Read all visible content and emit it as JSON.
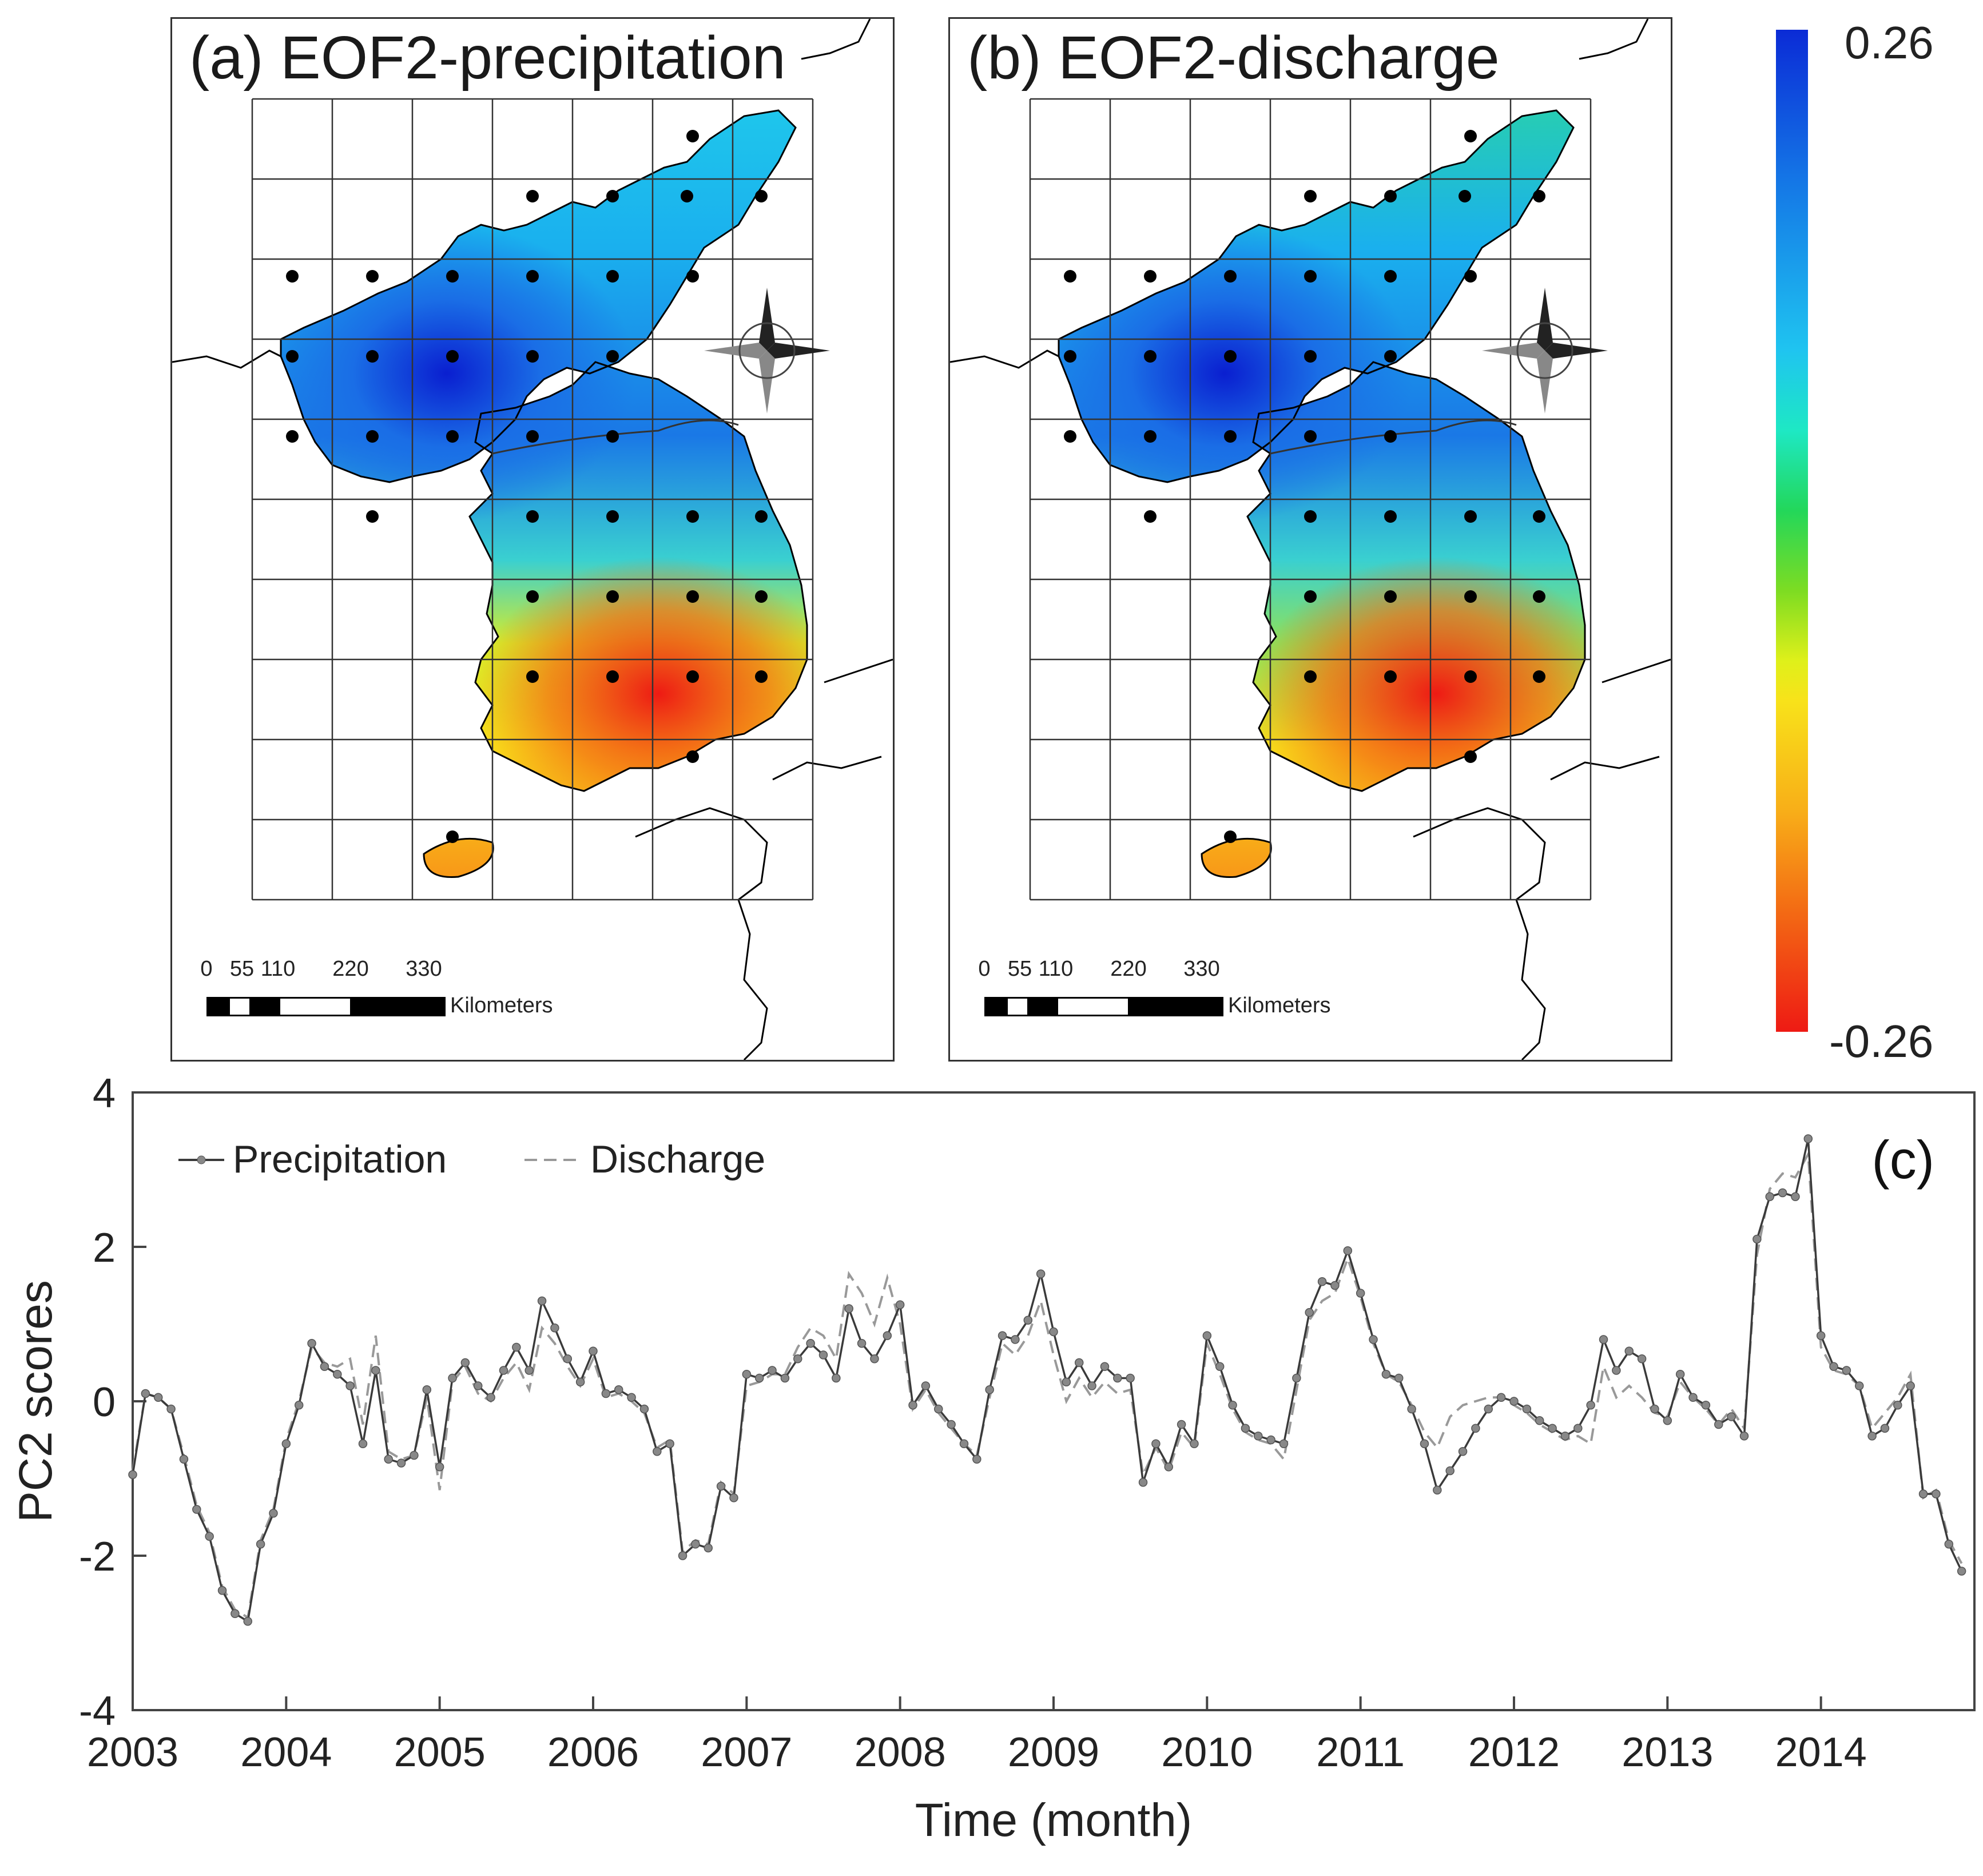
{
  "maps": [
    {
      "title": "(a) EOF2-precipitation"
    },
    {
      "title": "(b) EOF2-discharge"
    }
  ],
  "scale_bar": {
    "ticks": [
      "0",
      "55",
      "110",
      "220",
      "330"
    ],
    "units": "Kilometers"
  },
  "colorbar": {
    "max_label": "0.26",
    "min_label": "-0.26"
  },
  "chart_data": {
    "type": "line",
    "panel_label": "(c)",
    "xlabel": "Time (month)",
    "ylabel": "PC2 scores",
    "ylim": [
      -4,
      4
    ],
    "yticks": [
      "-4",
      "-2",
      "0",
      "2",
      "4"
    ],
    "xlim": [
      2003,
      2015
    ],
    "xticks": [
      "2003",
      "2004",
      "2005",
      "2006",
      "2007",
      "2008",
      "2009",
      "2010",
      "2011",
      "2012",
      "2013",
      "2014"
    ],
    "legend": {
      "position": "top-left"
    },
    "series": [
      {
        "name": "Precipitation",
        "style": "solid-markers",
        "values": [
          -0.95,
          0.1,
          0.05,
          -0.1,
          -0.75,
          -1.4,
          -1.75,
          -2.45,
          -2.75,
          -2.85,
          -1.85,
          -1.45,
          -0.55,
          -0.05,
          0.75,
          0.45,
          0.35,
          0.2,
          -0.55,
          0.4,
          -0.75,
          -0.8,
          -0.7,
          0.15,
          -0.85,
          0.3,
          0.5,
          0.2,
          0.05,
          0.4,
          0.7,
          0.4,
          1.3,
          0.95,
          0.55,
          0.25,
          0.65,
          0.1,
          0.15,
          0.05,
          -0.1,
          -0.65,
          -0.55,
          -2.0,
          -1.85,
          -1.9,
          -1.1,
          -1.25,
          0.35,
          0.3,
          0.4,
          0.3,
          0.55,
          0.75,
          0.6,
          0.3,
          1.2,
          0.75,
          0.55,
          0.85,
          1.25,
          -0.05,
          0.2,
          -0.1,
          -0.3,
          -0.55,
          -0.75,
          0.15,
          0.85,
          0.8,
          1.05,
          1.65,
          0.9,
          0.25,
          0.5,
          0.2,
          0.45,
          0.3,
          0.3,
          -1.05,
          -0.55,
          -0.85,
          -0.3,
          -0.55,
          0.85,
          0.45,
          -0.05,
          -0.35,
          -0.45,
          -0.5,
          -0.55,
          0.3,
          1.15,
          1.55,
          1.5,
          1.95,
          1.4,
          0.8,
          0.35,
          0.3,
          -0.1,
          -0.55,
          -1.15,
          -0.9,
          -0.65,
          -0.35,
          -0.1,
          0.05,
          0.0,
          -0.1,
          -0.25,
          -0.35,
          -0.45,
          -0.35,
          -0.05,
          0.8,
          0.4,
          0.65,
          0.55,
          -0.1,
          -0.25,
          0.35,
          0.05,
          -0.05,
          -0.3,
          -0.2,
          -0.45,
          2.1,
          2.65,
          2.7,
          2.65,
          3.4,
          0.85,
          0.45,
          0.4,
          0.2,
          -0.45,
          -0.35,
          -0.05,
          0.2,
          -1.2,
          -1.2,
          -1.85,
          -2.2
        ]
      },
      {
        "name": "Discharge",
        "style": "dashed",
        "values": [
          -0.9,
          0.1,
          0.05,
          -0.1,
          -0.7,
          -1.35,
          -1.7,
          -2.4,
          -2.7,
          -2.8,
          -1.8,
          -1.4,
          -0.5,
          0.0,
          0.7,
          0.5,
          0.45,
          0.55,
          -0.3,
          0.85,
          -0.65,
          -0.75,
          -0.7,
          0.05,
          -1.15,
          0.25,
          0.45,
          0.1,
          0.0,
          0.3,
          0.5,
          0.15,
          0.95,
          0.75,
          0.45,
          0.2,
          0.55,
          0.05,
          0.1,
          0.0,
          -0.15,
          -0.6,
          -0.5,
          -1.95,
          -1.8,
          -1.85,
          -1.05,
          -1.2,
          0.2,
          0.25,
          0.35,
          0.35,
          0.7,
          0.95,
          0.85,
          0.55,
          1.65,
          1.4,
          1.0,
          1.6,
          1.0,
          -0.1,
          0.15,
          -0.15,
          -0.35,
          -0.55,
          -0.7,
          0.05,
          0.75,
          0.6,
          0.85,
          1.3,
          0.6,
          0.0,
          0.3,
          0.05,
          0.25,
          0.1,
          0.15,
          -0.95,
          -0.6,
          -0.9,
          -0.4,
          -0.6,
          0.75,
          0.35,
          -0.1,
          -0.4,
          -0.5,
          -0.55,
          -0.75,
          0.15,
          1.05,
          1.3,
          1.4,
          1.85,
          1.35,
          0.75,
          0.35,
          0.25,
          -0.05,
          -0.4,
          -0.6,
          -0.2,
          -0.05,
          0.0,
          0.05,
          0.05,
          -0.05,
          -0.15,
          -0.3,
          -0.4,
          -0.5,
          -0.45,
          -0.55,
          0.45,
          0.05,
          0.2,
          0.05,
          -0.15,
          -0.2,
          0.25,
          0.05,
          -0.1,
          -0.3,
          -0.1,
          -0.35,
          1.9,
          2.75,
          2.95,
          2.9,
          3.2,
          0.7,
          0.4,
          0.35,
          0.2,
          -0.35,
          -0.15,
          0.05,
          0.35,
          -1.25,
          -1.15,
          -1.8,
          -2.1
        ]
      }
    ]
  }
}
